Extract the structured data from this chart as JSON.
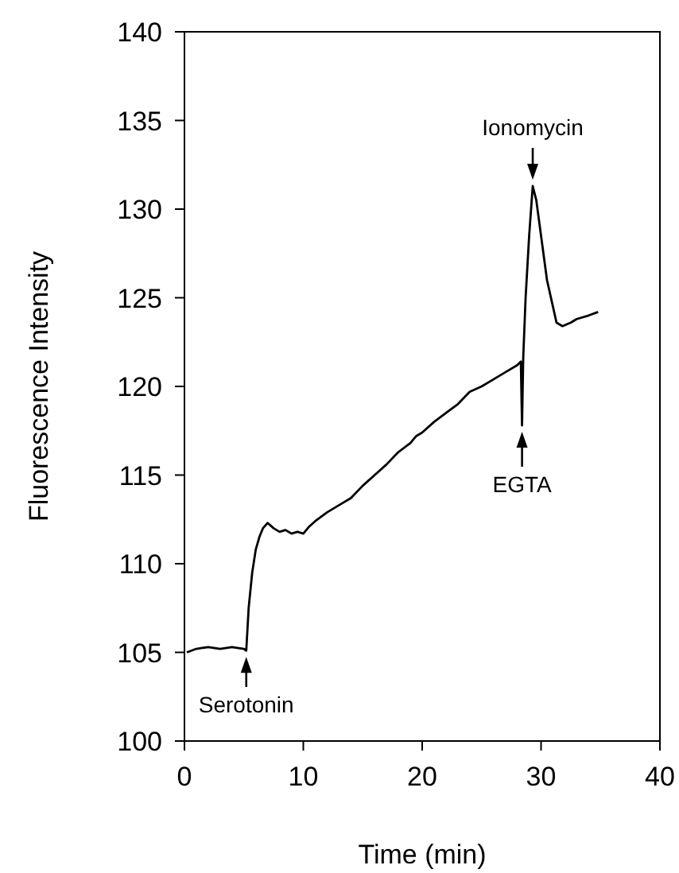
{
  "chart_data": {
    "type": "line",
    "xlabel": "Time (min)",
    "ylabel": "Fluorescence Intensity",
    "xlim": [
      0,
      40
    ],
    "ylim": [
      100,
      140
    ],
    "xticks": [
      0,
      10,
      20,
      30,
      40
    ],
    "yticks": [
      100,
      105,
      110,
      115,
      120,
      125,
      130,
      135,
      140
    ],
    "series": [
      {
        "color": "#000000",
        "x": [
          0.2,
          1,
          2,
          3,
          4,
          5,
          5.2,
          5.4,
          5.7,
          6,
          6.3,
          6.6,
          7,
          7.5,
          8,
          8.5,
          9,
          9.5,
          10,
          10.5,
          11,
          12,
          13,
          14,
          15,
          16,
          17,
          18,
          19,
          19.5,
          20,
          21,
          22,
          23,
          24,
          25,
          26,
          27,
          28,
          28.3,
          28.4,
          28.5,
          28.7,
          29,
          29.3,
          29.6,
          30,
          30.5,
          31,
          31.3,
          31.8,
          32.5,
          33,
          34,
          34.8
        ],
        "values": [
          105,
          105.2,
          105.3,
          105.2,
          105.3,
          105.2,
          105.1,
          107.5,
          109.5,
          110.8,
          111.5,
          112,
          112.3,
          112,
          111.8,
          111.9,
          111.7,
          111.8,
          111.7,
          112.1,
          112.4,
          112.9,
          113.3,
          113.7,
          114.4,
          115,
          115.6,
          116.3,
          116.8,
          117.2,
          117.4,
          118,
          118.5,
          119,
          119.7,
          120,
          120.4,
          120.8,
          121.2,
          121.4,
          117.8,
          121.6,
          125,
          128.5,
          131.3,
          130.5,
          128.5,
          126,
          124.5,
          123.6,
          123.4,
          123.6,
          123.8,
          124,
          124.2
        ]
      }
    ],
    "annotations": [
      {
        "text": "Serotonin",
        "x": 5.2,
        "y": 105.1
      },
      {
        "text": "EGTA",
        "x": 28.4,
        "y": 117.8
      },
      {
        "text": "Ionomycin",
        "x": 29.3,
        "y": 131.3
      }
    ]
  }
}
